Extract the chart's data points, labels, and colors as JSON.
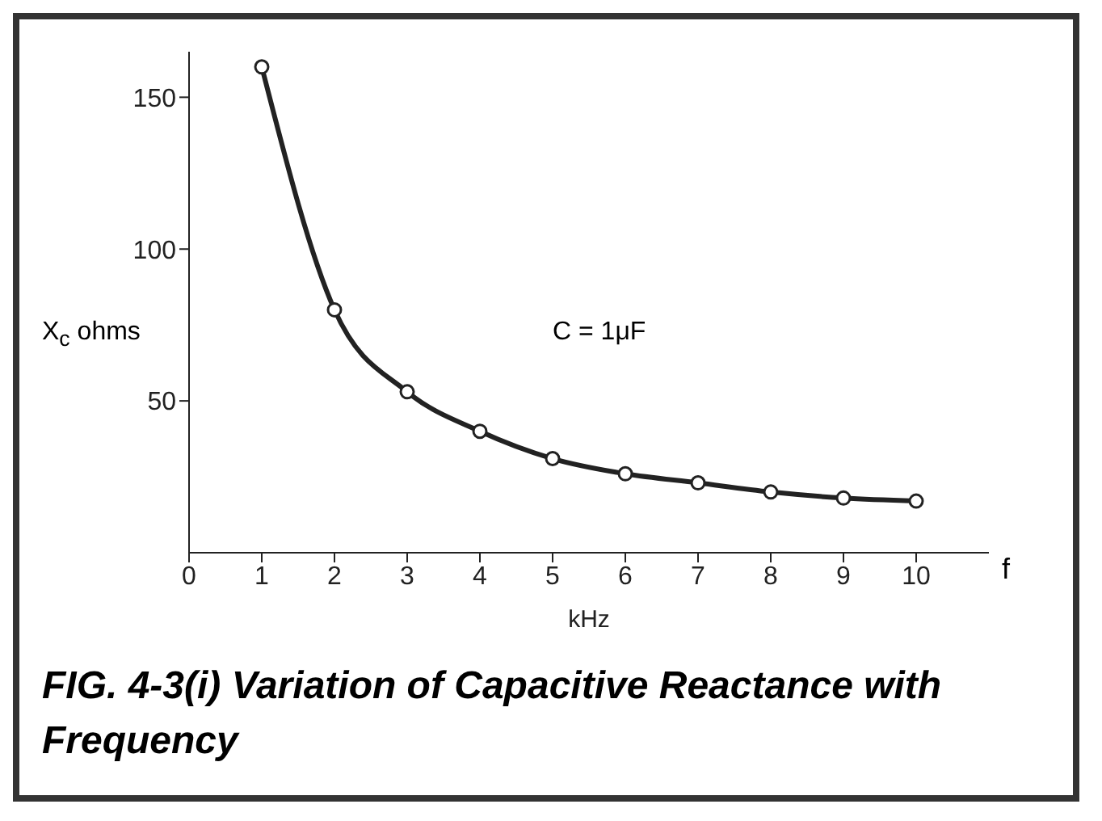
{
  "chart_data": {
    "type": "line",
    "title": "FIG. 4-3(i) Variation of Capacitive Reactance with Frequency",
    "xlabel": "kHz",
    "ylabel": "X$_{c}$ ohms",
    "annotations": [
      "C = 1μF",
      "f"
    ],
    "x": [
      1,
      2,
      3,
      4,
      5,
      6,
      7,
      8,
      9,
      10
    ],
    "series": [
      {
        "color": "#222222",
        "values": [
          160,
          80,
          53,
          40,
          31,
          26,
          23,
          20,
          18,
          17
        ]
      }
    ],
    "xlim": [
      0,
      11
    ],
    "xticks": [
      0,
      1,
      2,
      3,
      4,
      5,
      6,
      7,
      8,
      9,
      10
    ],
    "ylim": [
      0,
      165
    ],
    "yticks": [
      50,
      100,
      150
    ],
    "marker": "circle",
    "line_style": "solid"
  }
}
